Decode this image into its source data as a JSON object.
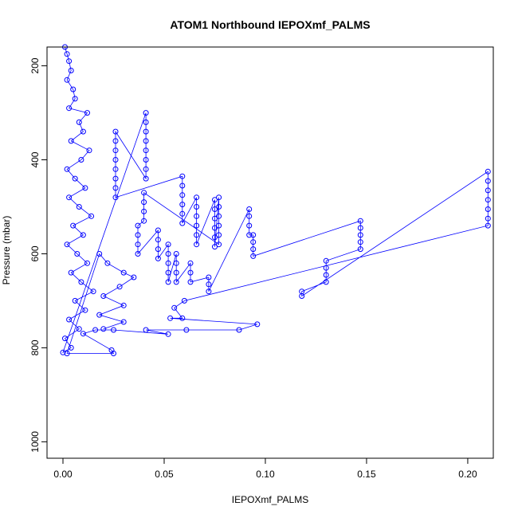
{
  "chart_data": {
    "type": "scatter",
    "title": "ATOM1 Northbound IEPOXmf_PALMS",
    "xlabel": "IEPOXmf_PALMS",
    "ylabel": "Pressure (mbar)",
    "xlim": [
      0.0,
      0.21
    ],
    "ylim": [
      1035,
      160
    ],
    "y_reversed": true,
    "grid": false,
    "legend": "none",
    "marker": "open-circle",
    "connected_by_lines": true,
    "color": "#0000ff",
    "x_ticks": [
      {
        "value": 0.0,
        "label": "0.00"
      },
      {
        "value": 0.05,
        "label": "0.05"
      },
      {
        "value": 0.1,
        "label": "0.10"
      },
      {
        "value": 0.15,
        "label": "0.15"
      },
      {
        "value": 0.2,
        "label": "0.20"
      }
    ],
    "y_ticks": [
      {
        "value": 200,
        "label": "200"
      },
      {
        "value": 400,
        "label": "400"
      },
      {
        "value": 600,
        "label": "600"
      },
      {
        "value": 800,
        "label": "800"
      },
      {
        "value": 1000,
        "label": "1000"
      }
    ],
    "series": [
      {
        "color": "#0000ff",
        "points": [
          {
            "x": 0.001,
            "y": 160
          },
          {
            "x": 0.002,
            "y": 175
          },
          {
            "x": 0.003,
            "y": 190
          },
          {
            "x": 0.004,
            "y": 210
          },
          {
            "x": 0.002,
            "y": 230
          },
          {
            "x": 0.005,
            "y": 250
          },
          {
            "x": 0.006,
            "y": 270
          },
          {
            "x": 0.003,
            "y": 290
          },
          {
            "x": 0.012,
            "y": 300
          },
          {
            "x": 0.008,
            "y": 320
          },
          {
            "x": 0.01,
            "y": 340
          },
          {
            "x": 0.004,
            "y": 360
          },
          {
            "x": 0.013,
            "y": 380
          },
          {
            "x": 0.009,
            "y": 400
          },
          {
            "x": 0.002,
            "y": 420
          },
          {
            "x": 0.006,
            "y": 440
          },
          {
            "x": 0.011,
            "y": 460
          },
          {
            "x": 0.003,
            "y": 480
          },
          {
            "x": 0.008,
            "y": 500
          },
          {
            "x": 0.014,
            "y": 520
          },
          {
            "x": 0.005,
            "y": 540
          },
          {
            "x": 0.01,
            "y": 560
          },
          {
            "x": 0.002,
            "y": 580
          },
          {
            "x": 0.007,
            "y": 600
          },
          {
            "x": 0.012,
            "y": 620
          },
          {
            "x": 0.004,
            "y": 640
          },
          {
            "x": 0.009,
            "y": 660
          },
          {
            "x": 0.015,
            "y": 680
          },
          {
            "x": 0.006,
            "y": 700
          },
          {
            "x": 0.011,
            "y": 720
          },
          {
            "x": 0.003,
            "y": 740
          },
          {
            "x": 0.008,
            "y": 760
          },
          {
            "x": 0.001,
            "y": 780
          },
          {
            "x": 0.004,
            "y": 800
          },
          {
            "x": 0.0,
            "y": 810
          },
          {
            "x": 0.041,
            "y": 300
          },
          {
            "x": 0.041,
            "y": 320
          },
          {
            "x": 0.041,
            "y": 340
          },
          {
            "x": 0.041,
            "y": 360
          },
          {
            "x": 0.041,
            "y": 380
          },
          {
            "x": 0.041,
            "y": 400
          },
          {
            "x": 0.041,
            "y": 420
          },
          {
            "x": 0.041,
            "y": 440
          },
          {
            "x": 0.026,
            "y": 340
          },
          {
            "x": 0.026,
            "y": 360
          },
          {
            "x": 0.026,
            "y": 380
          },
          {
            "x": 0.026,
            "y": 400
          },
          {
            "x": 0.026,
            "y": 420
          },
          {
            "x": 0.026,
            "y": 440
          },
          {
            "x": 0.026,
            "y": 460
          },
          {
            "x": 0.026,
            "y": 480
          },
          {
            "x": 0.059,
            "y": 435
          },
          {
            "x": 0.059,
            "y": 455
          },
          {
            "x": 0.059,
            "y": 475
          },
          {
            "x": 0.059,
            "y": 495
          },
          {
            "x": 0.059,
            "y": 515
          },
          {
            "x": 0.059,
            "y": 535
          },
          {
            "x": 0.066,
            "y": 480
          },
          {
            "x": 0.066,
            "y": 500
          },
          {
            "x": 0.066,
            "y": 520
          },
          {
            "x": 0.066,
            "y": 540
          },
          {
            "x": 0.066,
            "y": 560
          },
          {
            "x": 0.066,
            "y": 580
          },
          {
            "x": 0.075,
            "y": 485
          },
          {
            "x": 0.075,
            "y": 505
          },
          {
            "x": 0.075,
            "y": 525
          },
          {
            "x": 0.075,
            "y": 545
          },
          {
            "x": 0.075,
            "y": 565
          },
          {
            "x": 0.075,
            "y": 585
          },
          {
            "x": 0.077,
            "y": 480
          },
          {
            "x": 0.077,
            "y": 500
          },
          {
            "x": 0.077,
            "y": 520
          },
          {
            "x": 0.077,
            "y": 540
          },
          {
            "x": 0.077,
            "y": 560
          },
          {
            "x": 0.077,
            "y": 580
          },
          {
            "x": 0.04,
            "y": 470
          },
          {
            "x": 0.04,
            "y": 490
          },
          {
            "x": 0.04,
            "y": 510
          },
          {
            "x": 0.04,
            "y": 530
          },
          {
            "x": 0.037,
            "y": 540
          },
          {
            "x": 0.037,
            "y": 560
          },
          {
            "x": 0.037,
            "y": 580
          },
          {
            "x": 0.037,
            "y": 600
          },
          {
            "x": 0.047,
            "y": 550
          },
          {
            "x": 0.047,
            "y": 570
          },
          {
            "x": 0.047,
            "y": 590
          },
          {
            "x": 0.047,
            "y": 610
          },
          {
            "x": 0.052,
            "y": 580
          },
          {
            "x": 0.052,
            "y": 600
          },
          {
            "x": 0.052,
            "y": 620
          },
          {
            "x": 0.052,
            "y": 640
          },
          {
            "x": 0.052,
            "y": 660
          },
          {
            "x": 0.056,
            "y": 600
          },
          {
            "x": 0.056,
            "y": 620
          },
          {
            "x": 0.056,
            "y": 640
          },
          {
            "x": 0.056,
            "y": 660
          },
          {
            "x": 0.063,
            "y": 620
          },
          {
            "x": 0.063,
            "y": 640
          },
          {
            "x": 0.063,
            "y": 660
          },
          {
            "x": 0.072,
            "y": 650
          },
          {
            "x": 0.072,
            "y": 665
          },
          {
            "x": 0.072,
            "y": 680
          },
          {
            "x": 0.092,
            "y": 505
          },
          {
            "x": 0.092,
            "y": 520
          },
          {
            "x": 0.092,
            "y": 540
          },
          {
            "x": 0.092,
            "y": 560
          },
          {
            "x": 0.094,
            "y": 560
          },
          {
            "x": 0.094,
            "y": 575
          },
          {
            "x": 0.094,
            "y": 590
          },
          {
            "x": 0.094,
            "y": 605
          },
          {
            "x": 0.147,
            "y": 530
          },
          {
            "x": 0.147,
            "y": 545
          },
          {
            "x": 0.147,
            "y": 560
          },
          {
            "x": 0.147,
            "y": 575
          },
          {
            "x": 0.147,
            "y": 590
          },
          {
            "x": 0.13,
            "y": 615
          },
          {
            "x": 0.13,
            "y": 630
          },
          {
            "x": 0.13,
            "y": 645
          },
          {
            "x": 0.13,
            "y": 660
          },
          {
            "x": 0.118,
            "y": 680
          },
          {
            "x": 0.118,
            "y": 690
          },
          {
            "x": 0.21,
            "y": 425
          },
          {
            "x": 0.21,
            "y": 445
          },
          {
            "x": 0.21,
            "y": 465
          },
          {
            "x": 0.21,
            "y": 485
          },
          {
            "x": 0.21,
            "y": 505
          },
          {
            "x": 0.21,
            "y": 525
          },
          {
            "x": 0.21,
            "y": 540
          },
          {
            "x": 0.06,
            "y": 700
          },
          {
            "x": 0.055,
            "y": 715
          },
          {
            "x": 0.059,
            "y": 737
          },
          {
            "x": 0.053,
            "y": 737
          },
          {
            "x": 0.096,
            "y": 750
          },
          {
            "x": 0.087,
            "y": 762
          },
          {
            "x": 0.061,
            "y": 762
          },
          {
            "x": 0.041,
            "y": 762
          },
          {
            "x": 0.052,
            "y": 771
          },
          {
            "x": 0.025,
            "y": 762
          },
          {
            "x": 0.016,
            "y": 762
          },
          {
            "x": 0.01,
            "y": 770
          },
          {
            "x": 0.024,
            "y": 805
          },
          {
            "x": 0.025,
            "y": 812
          },
          {
            "x": 0.002,
            "y": 812
          },
          {
            "x": 0.018,
            "y": 600
          },
          {
            "x": 0.022,
            "y": 620
          },
          {
            "x": 0.03,
            "y": 640
          },
          {
            "x": 0.035,
            "y": 650
          },
          {
            "x": 0.028,
            "y": 670
          },
          {
            "x": 0.02,
            "y": 690
          },
          {
            "x": 0.03,
            "y": 710
          },
          {
            "x": 0.018,
            "y": 730
          },
          {
            "x": 0.03,
            "y": 745
          },
          {
            "x": 0.02,
            "y": 760
          }
        ]
      }
    ]
  }
}
